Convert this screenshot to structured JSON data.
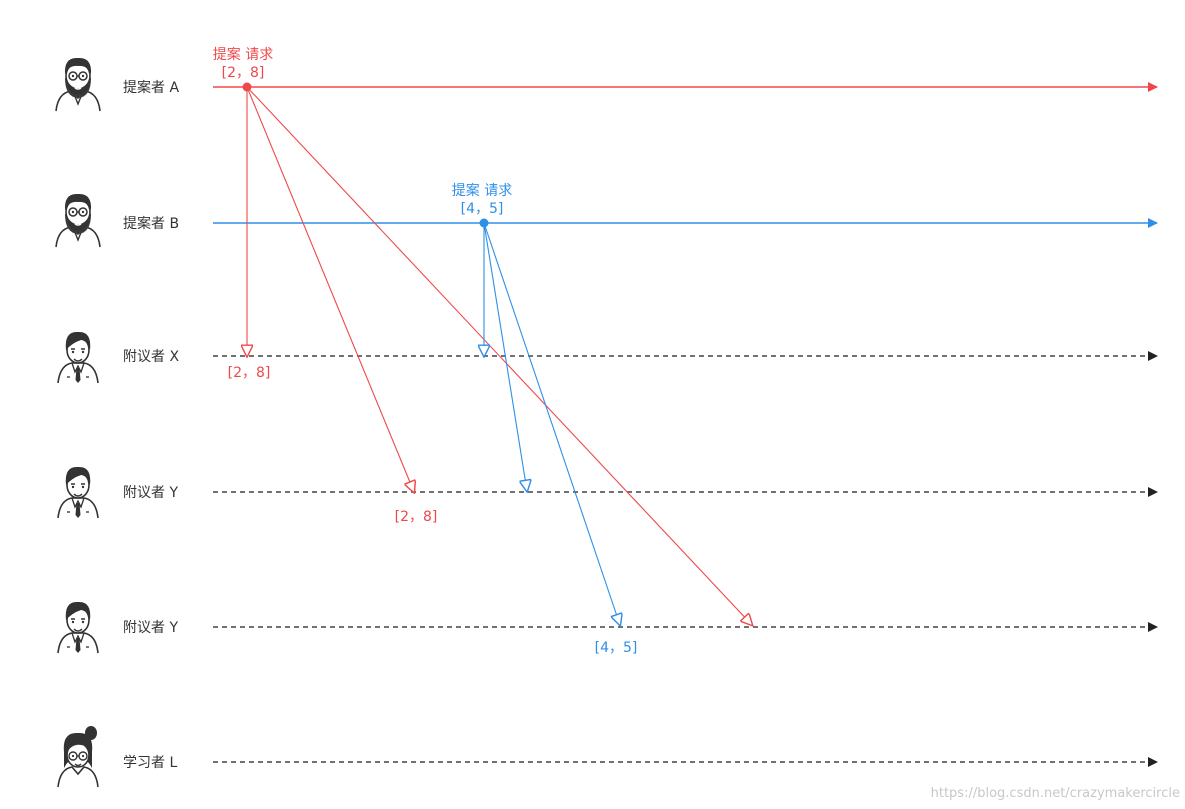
{
  "colors": {
    "red": "#f0484a",
    "blue": "#2f8fe8",
    "dark": "#333333",
    "watermark": "#c8c8c8"
  },
  "actors": [
    {
      "label": "提案者 A",
      "icon": "proposer-avatar-icon",
      "line": "solid",
      "line_color": "red"
    },
    {
      "label": "提案者 B",
      "icon": "proposer-avatar-icon",
      "line": "solid",
      "line_color": "blue"
    },
    {
      "label": "附议者 X",
      "icon": "acceptor-avatar-icon",
      "line": "dashed",
      "line_color": "dark"
    },
    {
      "label": "附议者 Y",
      "icon": "acceptor-avatar-icon",
      "line": "dashed",
      "line_color": "dark"
    },
    {
      "label": "附议者 Y",
      "icon": "acceptor-avatar-icon",
      "line": "dashed",
      "line_color": "dark"
    },
    {
      "label": "学习者 L",
      "icon": "learner-avatar-icon",
      "line": "dashed",
      "line_color": "dark"
    }
  ],
  "requests": [
    {
      "from": 0,
      "color": "red",
      "title": "提案 请求",
      "value": "[2，8]",
      "to": [
        2,
        3,
        4
      ]
    },
    {
      "from": 1,
      "color": "blue",
      "title": "提案 请求",
      "value": "[4，5]",
      "to": [
        2,
        3,
        4
      ]
    }
  ],
  "arrival_labels": [
    {
      "text": "[2，8]",
      "color": "red",
      "actor": 2
    },
    {
      "text": "[2，8]",
      "color": "red",
      "actor": 3
    },
    {
      "text": "[4，5]",
      "color": "blue",
      "actor": 4
    }
  ],
  "watermark": "https://blog.csdn.net/crazymakercircle"
}
